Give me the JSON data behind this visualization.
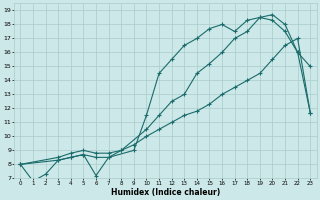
{
  "title": "",
  "xlabel": "Humidex (Indice chaleur)",
  "ylabel": "",
  "xlim": [
    -0.5,
    23.5
  ],
  "ylim": [
    7,
    19.5
  ],
  "xticks": [
    0,
    1,
    2,
    3,
    4,
    5,
    6,
    7,
    8,
    9,
    10,
    11,
    12,
    13,
    14,
    15,
    16,
    17,
    18,
    19,
    20,
    21,
    22,
    23
  ],
  "yticks": [
    7,
    8,
    9,
    10,
    11,
    12,
    13,
    14,
    15,
    16,
    17,
    18,
    19
  ],
  "bg_color": "#cde8e8",
  "grid_color": "#aacccc",
  "line_color": "#1a6b6b",
  "line_width": 0.8,
  "marker": "+",
  "marker_size": 3,
  "lines": [
    {
      "x": [
        0,
        1,
        2,
        3,
        4,
        5,
        6,
        7,
        8,
        9,
        10,
        11,
        12,
        13,
        14,
        15,
        16,
        17,
        18,
        19,
        20,
        21,
        22,
        23
      ],
      "y": [
        8,
        6.8,
        7.3,
        8.3,
        8.5,
        8.7,
        7.2,
        8.5,
        9.0,
        9.4,
        10.0,
        10.5,
        11.0,
        11.5,
        11.8,
        12.3,
        13.0,
        13.5,
        14.0,
        14.5,
        15.5,
        16.5,
        17.0,
        11.7
      ]
    },
    {
      "x": [
        0,
        3,
        4,
        5,
        6,
        7,
        8,
        10,
        11,
        12,
        13,
        14,
        15,
        16,
        17,
        18,
        19,
        20,
        21,
        22,
        23
      ],
      "y": [
        8,
        8.5,
        8.8,
        9.0,
        8.8,
        8.8,
        9.0,
        10.5,
        11.5,
        12.5,
        13.0,
        14.5,
        15.2,
        16.0,
        17.0,
        17.5,
        18.5,
        18.3,
        17.5,
        16.0,
        15.0
      ]
    },
    {
      "x": [
        0,
        3,
        4,
        5,
        6,
        7,
        9,
        10,
        11,
        12,
        13,
        14,
        15,
        16,
        17,
        18,
        19,
        20,
        21,
        22,
        23
      ],
      "y": [
        8,
        8.3,
        8.5,
        8.7,
        8.5,
        8.5,
        9.0,
        11.5,
        14.5,
        15.5,
        16.5,
        17.0,
        17.7,
        18.0,
        17.5,
        18.3,
        18.5,
        18.7,
        18.0,
        16.0,
        11.7
      ]
    }
  ]
}
